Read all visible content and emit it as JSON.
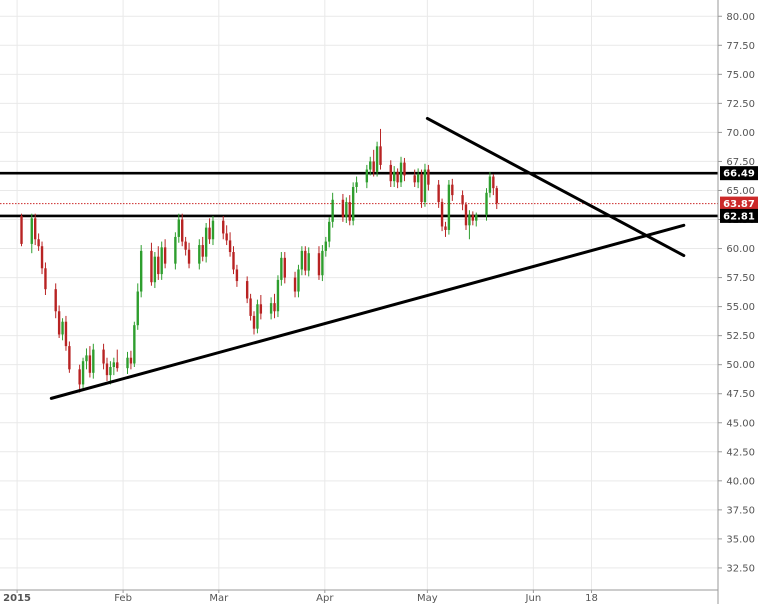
{
  "chart_data": {
    "type": "candlestick",
    "y_axis": {
      "ticks": [
        "80.00",
        "77.50",
        "75.00",
        "72.50",
        "70.00",
        "67.50",
        "65.00",
        "62.50",
        "60.00",
        "57.50",
        "55.00",
        "52.50",
        "50.00",
        "47.50",
        "45.00",
        "42.50",
        "40.00",
        "37.50",
        "35.00",
        "32.50"
      ],
      "range": [
        30.6,
        81.4
      ],
      "position": "right"
    },
    "x_axis": {
      "labels": [
        "2015",
        "Feb",
        "Mar",
        "Apr",
        "May",
        "Jun",
        "18"
      ],
      "label_dates": [
        "2015-01-01",
        "2015-02-01",
        "2015-03-01",
        "2015-04-01",
        "2015-05-01",
        "2015-06-01",
        "2015-06-18"
      ],
      "range": [
        "2014-12-27",
        "2015-07-25"
      ]
    },
    "price_labels": [
      {
        "text": "66.49",
        "value": 66.49,
        "color": "#000000"
      },
      {
        "text": "63.87",
        "value": 63.87,
        "color": "#cc2a2a"
      },
      {
        "text": "62.81",
        "value": 62.81,
        "color": "#000000"
      }
    ],
    "horizontal_lines": [
      66.49,
      62.81
    ],
    "current_price_line": 63.87,
    "trendlines": [
      {
        "from": {
          "date": "2015-01-11",
          "value": 47.1
        },
        "to": {
          "date": "2015-07-15",
          "value": 62.0
        }
      },
      {
        "from": {
          "date": "2015-05-01",
          "value": 71.2
        },
        "to": {
          "date": "2015-07-15",
          "value": 59.4
        }
      }
    ],
    "colors": {
      "up": "#2e9e2e",
      "down": "#b82323",
      "grid": "#e9e9e9",
      "axis": "#9a9a9a"
    },
    "candles": [
      [
        62.8,
        63.0,
        60.2,
        60.4
      ],
      [
        60.4,
        63.0,
        59.6,
        62.6
      ],
      [
        62.6,
        63.0,
        60.3,
        60.8
      ],
      [
        60.8,
        61.3,
        59.8,
        60.2
      ],
      [
        60.2,
        60.6,
        57.8,
        58.3
      ],
      [
        58.3,
        58.8,
        56.0,
        56.5
      ],
      [
        56.5,
        57.0,
        54.0,
        54.6
      ],
      [
        54.6,
        55.1,
        52.3,
        52.6
      ],
      [
        52.6,
        54.0,
        52.1,
        53.7
      ],
      [
        53.7,
        54.2,
        51.2,
        51.6
      ],
      [
        51.6,
        52.0,
        49.3,
        49.6
      ],
      [
        49.6,
        50.0,
        47.6,
        48.3
      ],
      [
        48.3,
        50.6,
        47.9,
        50.3
      ],
      [
        50.3,
        51.4,
        49.6,
        50.8
      ],
      [
        50.8,
        51.6,
        48.9,
        49.3
      ],
      [
        49.3,
        51.8,
        48.8,
        51.3
      ],
      [
        51.3,
        51.8,
        49.6,
        50.1
      ],
      [
        50.1,
        50.6,
        48.6,
        49.1
      ],
      [
        49.1,
        50.3,
        48.3,
        49.8
      ],
      [
        49.8,
        50.6,
        49.1,
        50.2
      ],
      [
        50.2,
        51.3,
        49.4,
        49.7
      ],
      [
        49.7,
        51.1,
        49.2,
        50.6
      ],
      [
        50.6,
        51.2,
        49.6,
        50.1
      ],
      [
        50.1,
        53.7,
        49.8,
        53.4
      ],
      [
        53.4,
        57.0,
        53.0,
        56.3
      ],
      [
        56.3,
        60.3,
        55.8,
        59.8
      ],
      [
        59.8,
        60.5,
        56.8,
        57.1
      ],
      [
        57.1,
        59.7,
        56.6,
        59.3
      ],
      [
        59.3,
        60.2,
        57.3,
        57.8
      ],
      [
        57.8,
        60.6,
        57.3,
        60.1
      ],
      [
        60.1,
        60.8,
        58.3,
        58.7
      ],
      [
        58.7,
        61.4,
        58.2,
        61.0
      ],
      [
        61.0,
        63.0,
        60.5,
        62.5
      ],
      [
        62.5,
        63.0,
        60.2,
        60.6
      ],
      [
        60.6,
        61.0,
        59.4,
        59.9
      ],
      [
        59.9,
        60.5,
        58.3,
        58.7
      ],
      [
        58.7,
        60.8,
        58.2,
        60.3
      ],
      [
        60.3,
        61.0,
        58.9,
        59.3
      ],
      [
        59.3,
        62.2,
        58.8,
        61.8
      ],
      [
        61.8,
        62.6,
        60.4,
        60.8
      ],
      [
        60.8,
        62.8,
        60.3,
        62.4
      ],
      [
        62.4,
        62.8,
        60.8,
        61.3
      ],
      [
        61.3,
        62.0,
        60.3,
        60.7
      ],
      [
        60.7,
        61.4,
        59.3,
        59.7
      ],
      [
        59.7,
        60.2,
        57.8,
        58.2
      ],
      [
        58.2,
        58.6,
        56.7,
        57.2
      ],
      [
        57.2,
        57.6,
        55.3,
        55.7
      ],
      [
        55.7,
        56.1,
        53.8,
        54.2
      ],
      [
        54.2,
        54.6,
        52.6,
        53.1
      ],
      [
        53.1,
        55.6,
        52.7,
        55.2
      ],
      [
        55.2,
        56.0,
        53.9,
        54.4
      ],
      [
        54.4,
        55.8,
        53.9,
        55.3
      ],
      [
        55.3,
        56.1,
        54.0,
        54.6
      ],
      [
        54.6,
        57.7,
        54.1,
        57.3
      ],
      [
        57.3,
        59.7,
        56.8,
        59.2
      ],
      [
        59.2,
        59.7,
        57.0,
        57.5
      ],
      [
        57.5,
        58.0,
        55.8,
        56.3
      ],
      [
        56.3,
        58.6,
        55.8,
        58.2
      ],
      [
        58.2,
        60.2,
        57.7,
        59.8
      ],
      [
        59.8,
        60.2,
        57.7,
        58.1
      ],
      [
        58.1,
        60.1,
        57.6,
        59.6
      ],
      [
        59.6,
        60.2,
        57.3,
        57.7
      ],
      [
        57.7,
        60.3,
        57.2,
        59.8
      ],
      [
        59.8,
        61.0,
        59.3,
        60.6
      ],
      [
        60.6,
        62.7,
        60.1,
        62.3
      ],
      [
        62.3,
        64.8,
        61.8,
        64.2
      ],
      [
        64.2,
        64.7,
        62.3,
        62.7
      ],
      [
        62.7,
        64.4,
        62.2,
        64.0
      ],
      [
        64.0,
        64.6,
        62.0,
        62.4
      ],
      [
        62.4,
        65.7,
        62.0,
        65.3
      ],
      [
        65.3,
        66.2,
        64.8,
        65.7
      ],
      [
        65.7,
        67.2,
        65.2,
        66.8
      ],
      [
        66.8,
        67.9,
        66.3,
        67.5
      ],
      [
        67.5,
        68.5,
        66.2,
        66.6
      ],
      [
        66.6,
        69.2,
        66.2,
        68.8
      ],
      [
        68.8,
        70.3,
        66.8,
        67.2
      ],
      [
        67.2,
        67.6,
        65.3,
        65.8
      ],
      [
        65.8,
        67.1,
        65.3,
        66.6
      ],
      [
        66.6,
        66.9,
        65.2,
        65.7
      ],
      [
        65.7,
        67.9,
        65.3,
        67.4
      ],
      [
        67.4,
        67.8,
        65.8,
        66.3
      ],
      [
        66.3,
        66.8,
        65.3,
        65.7
      ],
      [
        65.7,
        66.9,
        65.2,
        66.4
      ],
      [
        66.4,
        66.8,
        63.5,
        64.0
      ],
      [
        64.0,
        67.3,
        63.6,
        66.8
      ],
      [
        66.8,
        67.2,
        65.0,
        65.5
      ],
      [
        65.5,
        65.9,
        63.5,
        64.0
      ],
      [
        64.0,
        64.3,
        61.5,
        61.9
      ],
      [
        61.9,
        62.3,
        61.0,
        61.6
      ],
      [
        61.6,
        65.9,
        61.2,
        65.5
      ],
      [
        65.5,
        66.0,
        64.1,
        64.6
      ],
      [
        64.6,
        65.0,
        63.3,
        63.8
      ],
      [
        63.8,
        64.0,
        61.6,
        62.0
      ],
      [
        62.0,
        63.3,
        60.8,
        62.9
      ],
      [
        62.9,
        63.2,
        62.0,
        62.4
      ],
      [
        62.4,
        63.1,
        61.9,
        62.9
      ],
      [
        62.9,
        65.2,
        62.4,
        64.8
      ],
      [
        64.8,
        66.6,
        64.4,
        66.2
      ],
      [
        66.2,
        66.4,
        64.6,
        65.2
      ],
      [
        65.2,
        65.4,
        63.4,
        63.9
      ]
    ]
  }
}
